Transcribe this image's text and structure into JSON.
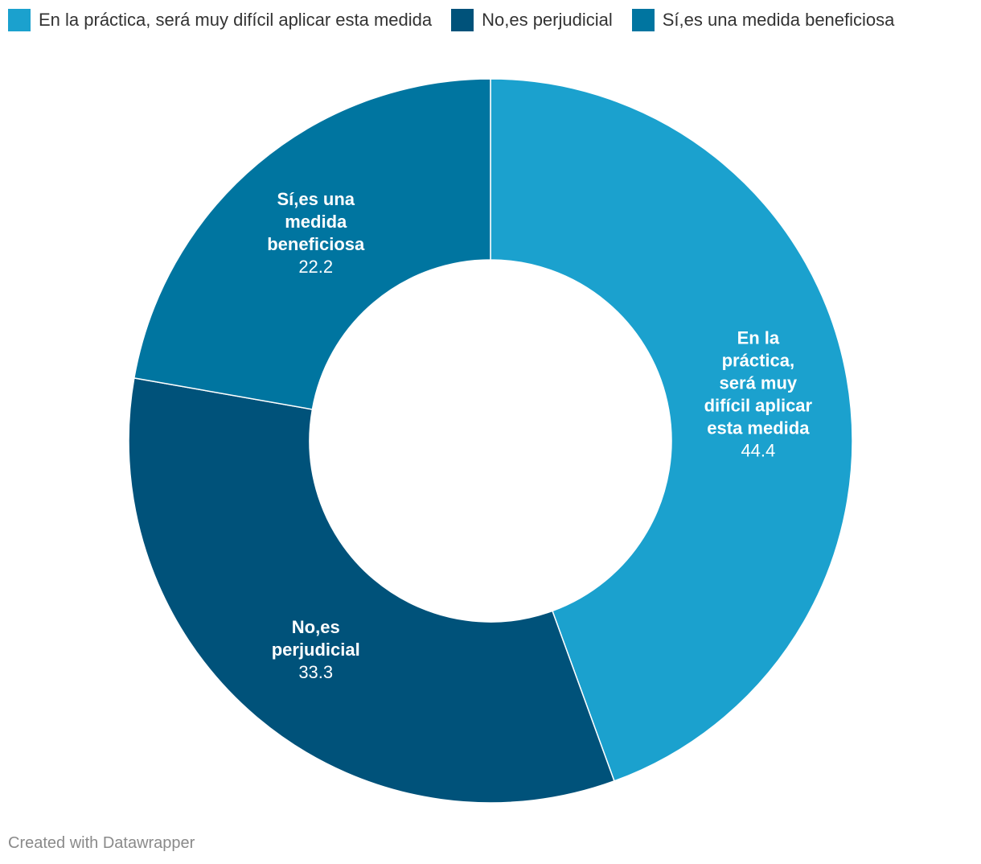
{
  "chart_data": {
    "type": "pie",
    "variant": "donut",
    "categories": [
      "En la práctica, será muy difícil aplicar esta medida",
      "No,es perjudicial",
      "Sí,es una medida beneficiosa"
    ],
    "values": [
      44.4,
      33.3,
      22.2
    ],
    "value_labels": [
      "44.4",
      "33.3",
      "22.2"
    ],
    "slice_label_lines": [
      [
        "En la",
        "práctica,",
        "será muy",
        "difícil aplicar",
        "esta medida"
      ],
      [
        "No,es",
        "perjudicial"
      ],
      [
        "Sí,es una",
        "medida",
        "beneficiosa"
      ]
    ],
    "colors": [
      "#1ba1ce",
      "#00527a",
      "#0075a0"
    ],
    "legend_position": "top-left"
  },
  "legend": {
    "items": [
      {
        "label": "En la práctica, será muy difícil aplicar esta medida",
        "color": "#1ba1ce"
      },
      {
        "label": "No,es perjudicial",
        "color": "#00527a"
      },
      {
        "label": "Sí,es una medida beneficiosa",
        "color": "#0075a0"
      }
    ]
  },
  "footer": {
    "credit": "Created with Datawrapper"
  }
}
